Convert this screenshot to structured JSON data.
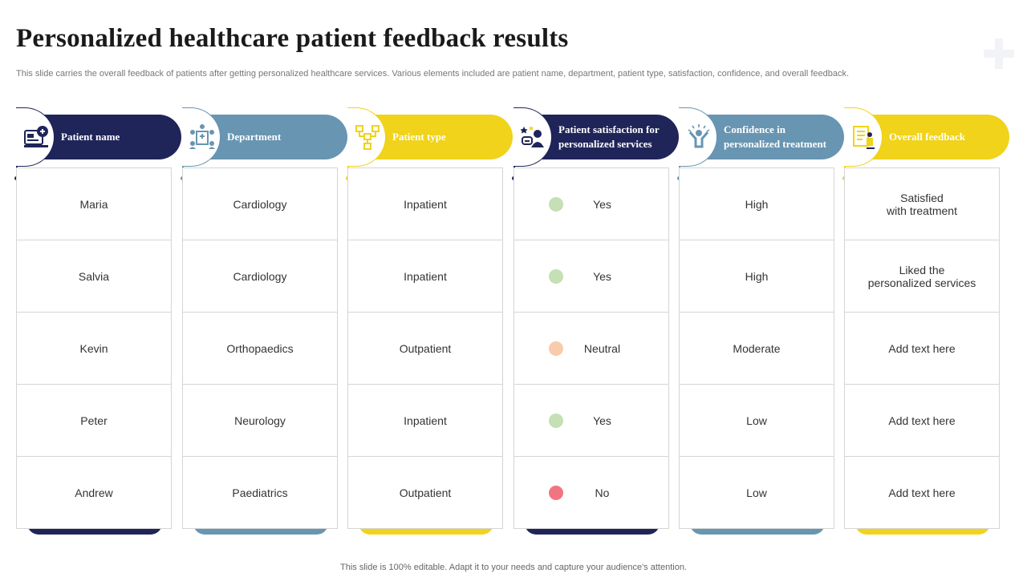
{
  "title": "Personalized  healthcare patient feedback results",
  "subtitle": "This slide carries the overall feedback of patients after getting personalized healthcare services. Various elements included are patient name, department, patient type,  satisfaction, confidence, and overall feedback.",
  "footer": "This slide is 100% editable. Adapt it to your needs and capture your audience's attention.",
  "colors": {
    "navy": "#1f2559",
    "steel": "#6895b1",
    "yellow": "#f0d31a",
    "green": "#c5e0b4",
    "peach": "#f8cbad",
    "red": "#f17581"
  },
  "columns": [
    {
      "header": "Patient name",
      "icon": "patient-record-icon",
      "color": "#1f2559",
      "rows": [
        "Maria",
        "Salvia",
        "Kevin",
        "Peter",
        "Andrew"
      ]
    },
    {
      "header": "Department",
      "icon": "hospital-staff-icon",
      "color": "#6895b1",
      "rows": [
        "Cardiology",
        "Cardiology",
        "Orthopaedics",
        "Neurology",
        "Paediatrics"
      ]
    },
    {
      "header": "Patient type",
      "icon": "flowchart-icon",
      "color": "#f0d31a",
      "rows": [
        "Inpatient",
        "Inpatient",
        "Outpatient",
        "Inpatient",
        "Outpatient"
      ]
    },
    {
      "header": "Patient satisfaction for personalized services",
      "icon": "customer-rating-icon",
      "color": "#1f2559",
      "rows": [
        {
          "label": "Yes",
          "status_color": "#c5e0b4"
        },
        {
          "label": "Yes",
          "status_color": "#c5e0b4"
        },
        {
          "label": "Neutral",
          "status_color": "#f8cbad"
        },
        {
          "label": "Yes",
          "status_color": "#c5e0b4"
        },
        {
          "label": "No",
          "status_color": "#f17581"
        }
      ]
    },
    {
      "header": "Confidence in personalized treatment",
      "icon": "confident-person-icon",
      "color": "#6895b1",
      "rows": [
        "High",
        "High",
        "Moderate",
        "Low",
        "Low"
      ]
    },
    {
      "header": "Overall feedback",
      "icon": "feedback-checklist-icon",
      "color": "#f0d31a",
      "rows": [
        "Satisfied\nwith treatment",
        "Liked the\npersonalized services",
        "Add text here",
        "Add text here",
        "Add text here"
      ]
    }
  ]
}
